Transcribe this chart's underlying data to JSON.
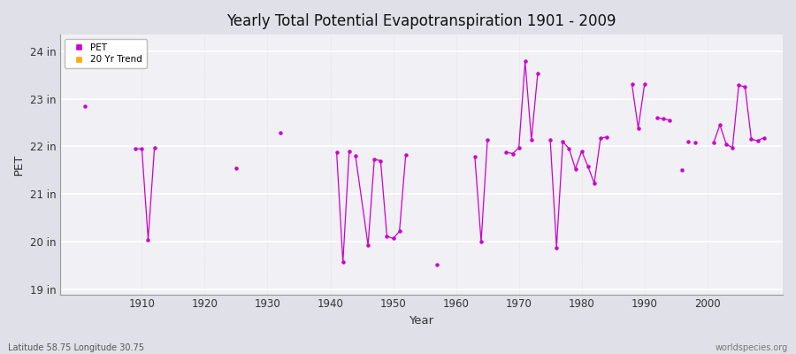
{
  "title": "Yearly Total Potential Evapotranspiration 1901 - 2009",
  "xlabel": "Year",
  "ylabel": "PET",
  "subtitle": "Latitude 58.75 Longitude 30.75",
  "watermark": "worldspecies.org",
  "bg_color": "#e0e0e8",
  "plot_bg_color": "#f0f0f5",
  "line_color": "#cc00cc",
  "trend_color": "#ffaa00",
  "ylim": [
    18.9,
    24.35
  ],
  "yticks": [
    19,
    20,
    21,
    22,
    23,
    24
  ],
  "ytick_labels": [
    "19 in",
    "20 in",
    "21 in",
    "22 in",
    "23 in",
    "24 in"
  ],
  "xlim": [
    1897,
    2012
  ],
  "xticks": [
    1910,
    1920,
    1930,
    1940,
    1950,
    1960,
    1970,
    1980,
    1990,
    2000
  ],
  "pet_data": [
    [
      1901,
      22.85
    ],
    [
      1909,
      21.95
    ],
    [
      1910,
      21.95
    ],
    [
      1911,
      20.05
    ],
    [
      1912,
      21.97
    ],
    [
      1925,
      21.55
    ],
    [
      1932,
      22.28
    ],
    [
      1941,
      21.88
    ],
    [
      1942,
      19.57
    ],
    [
      1943,
      21.9
    ],
    [
      1944,
      21.8
    ],
    [
      1946,
      19.93
    ],
    [
      1947,
      21.73
    ],
    [
      1948,
      21.7
    ],
    [
      1949,
      20.12
    ],
    [
      1950,
      20.07
    ],
    [
      1951,
      20.22
    ],
    [
      1952,
      21.83
    ],
    [
      1957,
      19.52
    ],
    [
      1963,
      21.78
    ],
    [
      1964,
      20.0
    ],
    [
      1965,
      22.13
    ],
    [
      1968,
      21.88
    ],
    [
      1969,
      21.85
    ],
    [
      1970,
      21.97
    ],
    [
      1971,
      23.78
    ],
    [
      1972,
      22.13
    ],
    [
      1973,
      23.53
    ],
    [
      1975,
      22.13
    ],
    [
      1976,
      19.88
    ],
    [
      1977,
      22.1
    ],
    [
      1978,
      21.95
    ],
    [
      1979,
      21.53
    ],
    [
      1980,
      21.9
    ],
    [
      1981,
      21.58
    ],
    [
      1982,
      21.23
    ],
    [
      1983,
      22.17
    ],
    [
      1984,
      22.2
    ],
    [
      1988,
      23.3
    ],
    [
      1989,
      22.38
    ],
    [
      1990,
      23.3
    ],
    [
      1992,
      22.6
    ],
    [
      1993,
      22.58
    ],
    [
      1994,
      22.55
    ],
    [
      1996,
      21.5
    ],
    [
      1997,
      22.1
    ],
    [
      1998,
      22.08
    ],
    [
      2001,
      22.08
    ],
    [
      2002,
      22.45
    ],
    [
      2003,
      22.05
    ],
    [
      2004,
      21.97
    ],
    [
      2005,
      23.28
    ],
    [
      2006,
      23.25
    ],
    [
      2007,
      22.15
    ],
    [
      2008,
      22.12
    ],
    [
      2009,
      22.18
    ]
  ],
  "connected_segments": [
    [
      1909,
      1910,
      1911,
      1912
    ],
    [
      1941,
      1942,
      1943
    ],
    [
      1944,
      1946,
      1947,
      1948,
      1949,
      1950,
      1951,
      1952
    ],
    [
      1963,
      1964,
      1965
    ],
    [
      1968,
      1969,
      1970,
      1971,
      1972,
      1973
    ],
    [
      1975,
      1976,
      1977,
      1978,
      1979,
      1980,
      1981,
      1982,
      1983,
      1984
    ],
    [
      1988,
      1989,
      1990
    ],
    [
      1992,
      1993,
      1994
    ],
    [
      2001,
      2002,
      2003,
      2004,
      2005,
      2006,
      2007,
      2008,
      2009
    ]
  ]
}
